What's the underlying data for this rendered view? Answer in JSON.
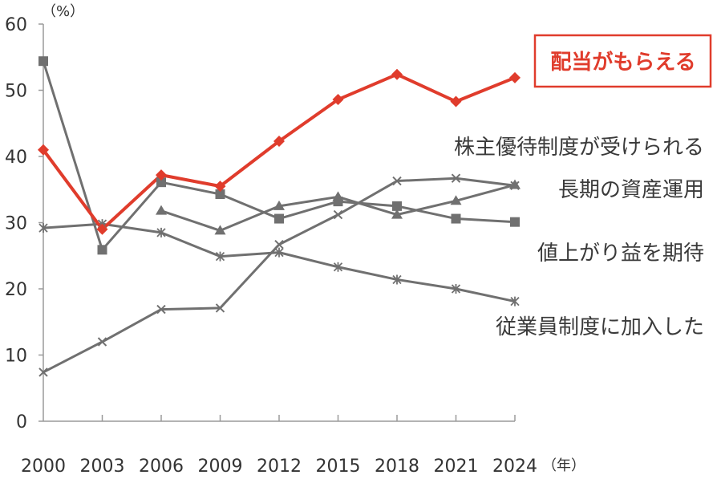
{
  "chart_data": {
    "type": "line",
    "y_unit": "（%）",
    "x_unit": "（年）",
    "x": [
      "2000",
      "2003",
      "2006",
      "2009",
      "2012",
      "2015",
      "2018",
      "2021",
      "2024"
    ],
    "ylim": [
      0,
      60
    ],
    "yticks": [
      "0",
      "10",
      "20",
      "30",
      "40",
      "50",
      "60"
    ],
    "grid": false,
    "series": [
      {
        "name": "配当がもらえる",
        "marker": "diamond",
        "color": "#e03c2c",
        "highlight": true,
        "values": [
          41,
          29,
          37.2,
          35.5,
          42.3,
          48.6,
          52.4,
          48.3,
          51.9
        ]
      },
      {
        "name": "株主優待制度が受けられる",
        "marker": "triangle",
        "color": "#707070",
        "values": [
          null,
          null,
          31.8,
          28.8,
          32.5,
          33.9,
          31.2,
          33.3,
          35.7
        ]
      },
      {
        "name": "長期の資産運用",
        "marker": "cross",
        "color": "#707070",
        "values": [
          7.4,
          12,
          16.9,
          17.1,
          26.7,
          31.2,
          36.3,
          36.7,
          35.6
        ]
      },
      {
        "name": "値上がり益を期待",
        "marker": "square",
        "color": "#707070",
        "values": [
          54.4,
          25.9,
          36.1,
          34.3,
          30.6,
          33.2,
          32.5,
          30.6,
          30.1
        ]
      },
      {
        "name": "従業員制度に加入した",
        "marker": "asterisk",
        "color": "#707070",
        "values": [
          29.2,
          29.8,
          28.5,
          24.9,
          25.5,
          23.3,
          21.4,
          20,
          18.1
        ]
      }
    ]
  }
}
